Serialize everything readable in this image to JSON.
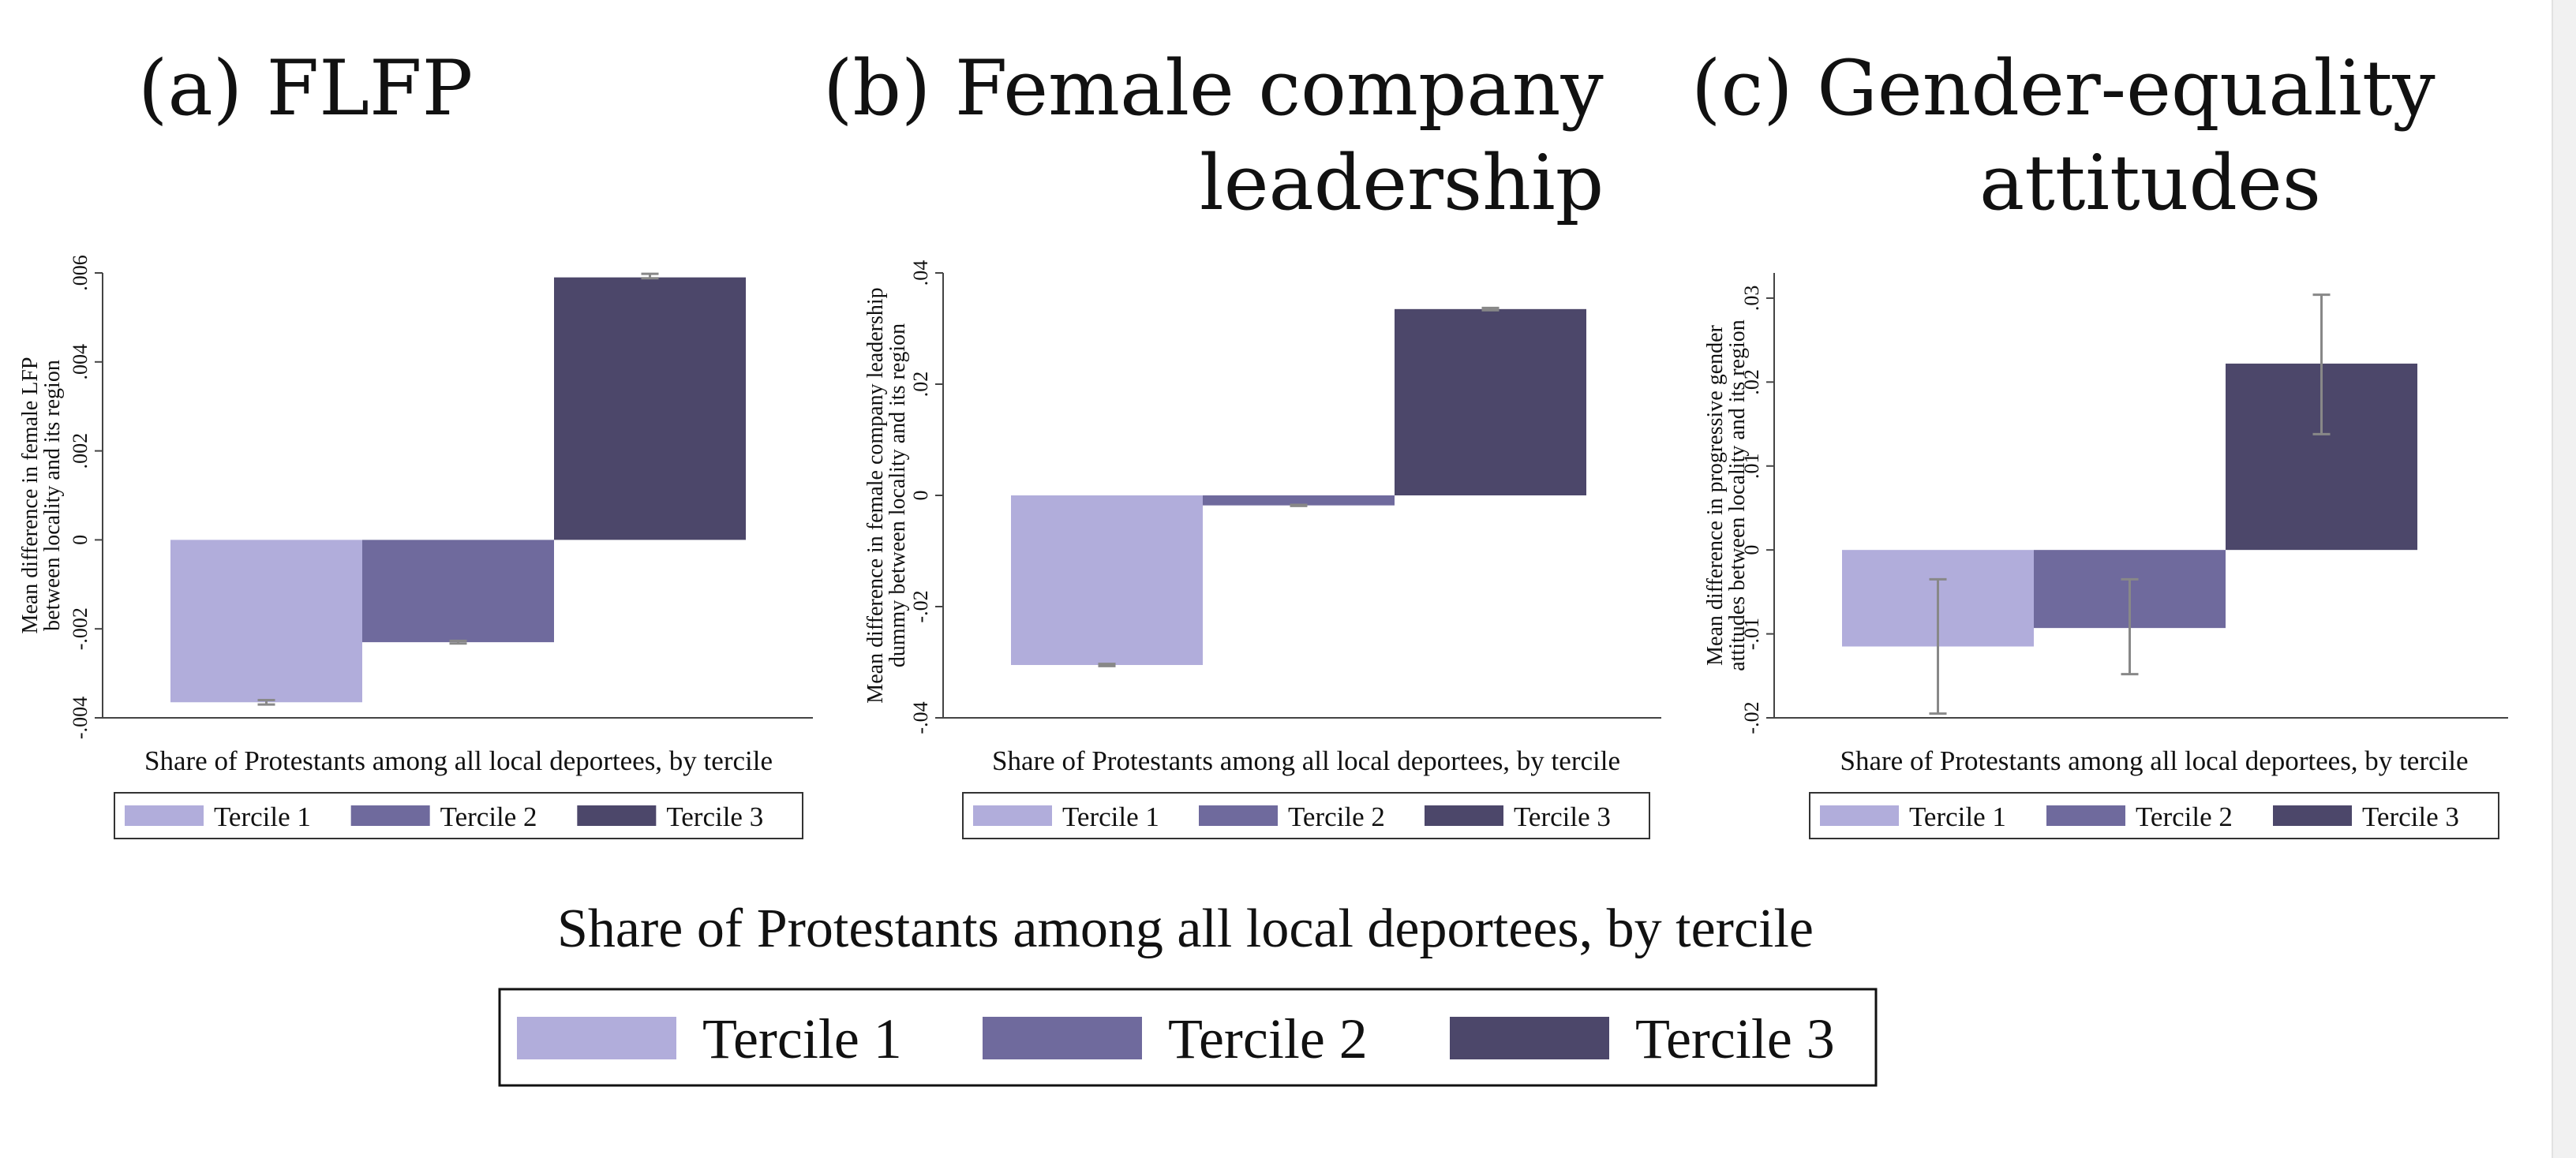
{
  "colors": {
    "tercile1": "#b1addb",
    "tercile2": "#6f6a9d",
    "tercile3": "#4c476a",
    "error_bar": "#888888",
    "axis": "#444444"
  },
  "chart_data": [
    {
      "type": "bar",
      "title": [
        "(a) FLFP"
      ],
      "ylabel": [
        "Mean difference in female LFP",
        "between locality and its region"
      ],
      "xlabel": "Share of Protestants among all local deportees, by tercile",
      "ylim": [
        -0.004,
        0.006
      ],
      "yticks": [
        -0.004,
        -0.002,
        0,
        0.002,
        0.004,
        0.006
      ],
      "ytick_labels": [
        "-.004",
        "-.002",
        "0",
        ".002",
        ".004",
        ".006"
      ],
      "series": [
        {
          "name": "Tercile 1",
          "value": -0.00365,
          "ci": [
            -0.0037,
            -0.0036
          ]
        },
        {
          "name": "Tercile 2",
          "value": -0.0023,
          "ci": [
            -0.00233,
            -0.00227
          ]
        },
        {
          "name": "Tercile 3",
          "value": 0.0059,
          "ci": [
            0.00588,
            0.00598
          ]
        }
      ],
      "legend": [
        "Tercile 1",
        "Tercile 2",
        "Tercile 3"
      ]
    },
    {
      "type": "bar",
      "title": [
        "(b) Female company",
        "leadership"
      ],
      "ylabel": [
        "Mean difference in female company leadership",
        "dummy between locality and its region"
      ],
      "xlabel": "Share of Protestants among all local deportees, by tercile",
      "ylim": [
        -0.04,
        0.04
      ],
      "yticks": [
        -0.04,
        -0.02,
        0,
        0.02,
        0.04
      ],
      "ytick_labels": [
        "-.04",
        "-.02",
        "0",
        ".02",
        ".04"
      ],
      "series": [
        {
          "name": "Tercile 1",
          "value": -0.0305,
          "ci": [
            -0.0307,
            -0.0303
          ]
        },
        {
          "name": "Tercile 2",
          "value": -0.0018,
          "ci": [
            -0.0019,
            -0.0017
          ]
        },
        {
          "name": "Tercile 3",
          "value": 0.0335,
          "ci": [
            0.0333,
            0.0337
          ]
        }
      ],
      "legend": [
        "Tercile 1",
        "Tercile 2",
        "Tercile 3"
      ]
    },
    {
      "type": "bar",
      "title": [
        "(c) Gender-equality",
        "attitudes"
      ],
      "ylabel": [
        "Mean difference in progressive gender",
        "attitudes between locality and its region"
      ],
      "xlabel": "Share of Protestants among all local deportees, by tercile",
      "ylim": [
        -0.02,
        0.033
      ],
      "yticks": [
        -0.02,
        -0.01,
        0,
        0.01,
        0.02,
        0.03
      ],
      "ytick_labels": [
        "-.02",
        "-.01",
        "0",
        ".01",
        ".02",
        ".03"
      ],
      "series": [
        {
          "name": "Tercile 1",
          "value": -0.0115,
          "ci": [
            -0.0195,
            -0.0035
          ]
        },
        {
          "name": "Tercile 2",
          "value": -0.0093,
          "ci": [
            -0.0148,
            -0.0035
          ]
        },
        {
          "name": "Tercile 3",
          "value": 0.0222,
          "ci": [
            0.0138,
            0.0304
          ]
        }
      ],
      "legend": [
        "Tercile 1",
        "Tercile 2",
        "Tercile 3"
      ]
    }
  ],
  "shared": {
    "xlabel": "Share of Protestants among all local deportees, by tercile",
    "legend": [
      "Tercile 1",
      "Tercile 2",
      "Tercile 3"
    ]
  }
}
